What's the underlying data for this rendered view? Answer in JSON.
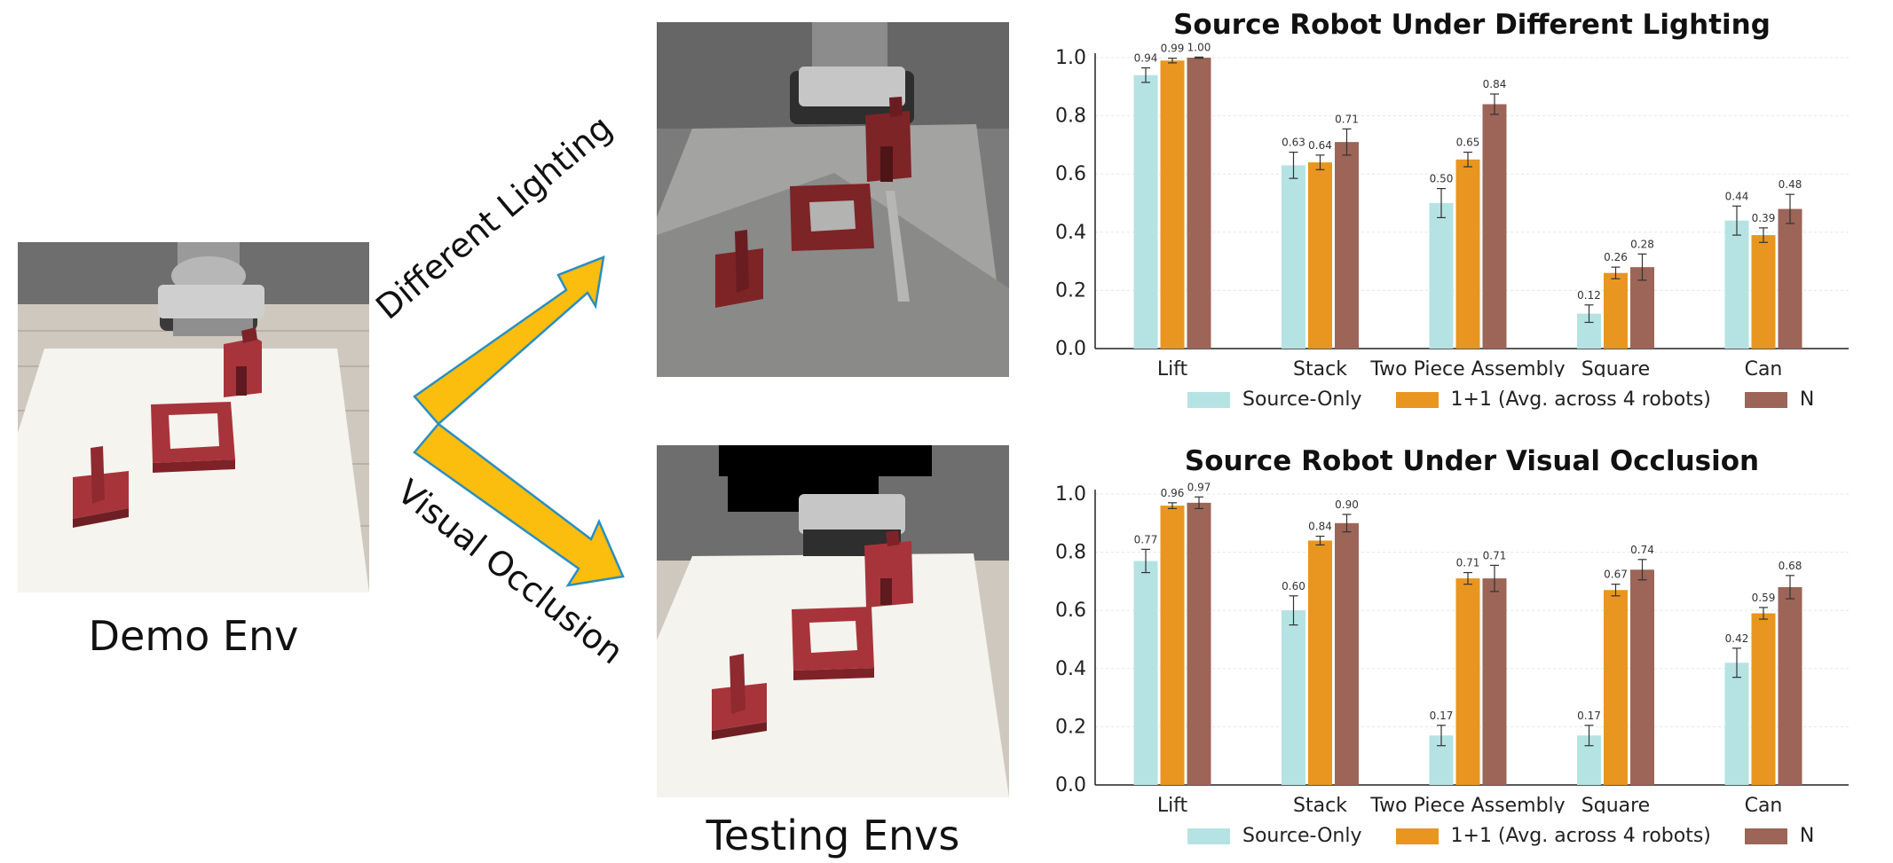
{
  "left_panel": {
    "demo_caption": "Demo Env",
    "testing_caption": "Testing Envs",
    "arrow_top_label": "Different Lighting",
    "arrow_bottom_label": "Visual Occlusion"
  },
  "colors": {
    "source_only": "#b5e3e4",
    "one_plus_one": "#e8961f",
    "n": "#9c6558",
    "arrow_fill": "#fbbd0e",
    "arrow_stroke": "#2a8fc2",
    "cube": "#9e2f35"
  },
  "chart_data": [
    {
      "type": "bar",
      "title": "Source Robot Under Different Lighting",
      "categories": [
        "Lift",
        "Stack",
        "Two Piece Assembly",
        "Square",
        "Can"
      ],
      "ylim": [
        0,
        1.0
      ],
      "yticks": [
        "0.0",
        "0.2",
        "0.4",
        "0.6",
        "0.8",
        "1.0"
      ],
      "series": [
        {
          "name": "Source-Only",
          "values": [
            0.94,
            0.63,
            0.5,
            0.12,
            0.44
          ],
          "labels": [
            "0.94",
            "0.63",
            "0.50",
            "0.12",
            "0.44"
          ],
          "errors": [
            0.025,
            0.045,
            0.05,
            0.03,
            0.05
          ]
        },
        {
          "name": "1+1 (Avg. across 4 robots)",
          "values": [
            0.99,
            0.64,
            0.65,
            0.26,
            0.39
          ],
          "labels": [
            "0.99",
            "0.64",
            "0.65",
            "0.26",
            "0.39"
          ],
          "errors": [
            0.008,
            0.025,
            0.025,
            0.02,
            0.025
          ]
        },
        {
          "name": "N",
          "values": [
            1.0,
            0.71,
            0.84,
            0.28,
            0.48
          ],
          "labels": [
            "1.00",
            "0.71",
            "0.84",
            "0.28",
            "0.48"
          ],
          "errors": [
            0.002,
            0.045,
            0.035,
            0.045,
            0.05
          ]
        }
      ],
      "legend": [
        "Source-Only",
        "1+1 (Avg. across 4 robots)",
        "N"
      ]
    },
    {
      "type": "bar",
      "title": "Source Robot Under Visual Occlusion",
      "categories": [
        "Lift",
        "Stack",
        "Two Piece Assembly",
        "Square",
        "Can"
      ],
      "ylim": [
        0,
        1.0
      ],
      "yticks": [
        "0.0",
        "0.2",
        "0.4",
        "0.6",
        "0.8",
        "1.0"
      ],
      "series": [
        {
          "name": "Source-Only",
          "values": [
            0.77,
            0.6,
            0.17,
            0.17,
            0.42
          ],
          "labels": [
            "0.77",
            "0.60",
            "0.17",
            "0.17",
            "0.42"
          ],
          "errors": [
            0.04,
            0.05,
            0.035,
            0.035,
            0.05
          ]
        },
        {
          "name": "1+1 (Avg. across 4 robots)",
          "values": [
            0.96,
            0.84,
            0.71,
            0.67,
            0.59
          ],
          "labels": [
            "0.96",
            "0.84",
            "0.71",
            "0.67",
            "0.59"
          ],
          "errors": [
            0.01,
            0.015,
            0.02,
            0.02,
            0.02
          ]
        },
        {
          "name": "N",
          "values": [
            0.97,
            0.9,
            0.71,
            0.74,
            0.68
          ],
          "labels": [
            "0.97",
            "0.90",
            "0.71",
            "0.74",
            "0.68"
          ],
          "errors": [
            0.02,
            0.03,
            0.045,
            0.035,
            0.04
          ]
        }
      ],
      "legend": [
        "Source-Only",
        "1+1 (Avg. across 4 robots)",
        "N"
      ]
    }
  ]
}
